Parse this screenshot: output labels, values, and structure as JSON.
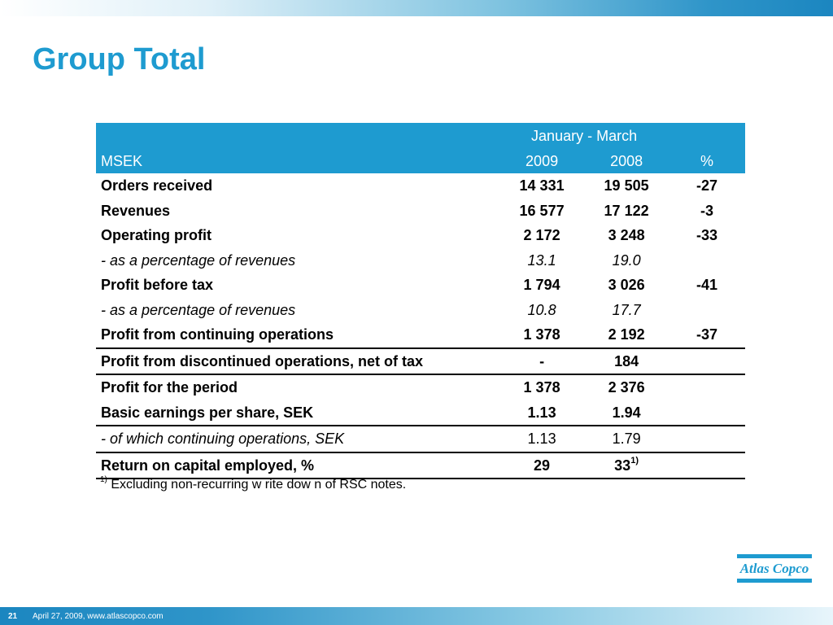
{
  "slide": {
    "title": "Group Total",
    "page_number": "21",
    "footer": "April 27, 2009, www.atlascopco.com",
    "logo_text": "Atlas Copco",
    "accent_color": "#1e9bd0"
  },
  "table": {
    "header": {
      "period": "January - March",
      "unit": "MSEK",
      "col_2009": "2009",
      "col_2008": "2008",
      "col_pct": "%"
    },
    "rows": [
      {
        "label": "Orders received",
        "v2009": "14 331",
        "v2008": "19 505",
        "pct": "-27"
      },
      {
        "label": "Revenues",
        "v2009": "16 577",
        "v2008": "17 122",
        "pct": "-3"
      },
      {
        "label": "Operating profit",
        "v2009": "2 172",
        "v2008": "3 248",
        "pct": "-33"
      },
      {
        "label": "-  as a percentage of revenues",
        "v2009": "13.1",
        "v2008": "19.0",
        "pct": ""
      },
      {
        "label": "Profit before tax",
        "v2009": "1 794",
        "v2008": "3 026",
        "pct": "-41"
      },
      {
        "label": "-  as a percentage of revenues",
        "v2009": "10.8",
        "v2008": "17.7",
        "pct": ""
      },
      {
        "label": "Profit from continuing operations",
        "v2009": "1 378",
        "v2008": "2 192",
        "pct": "-37"
      },
      {
        "label": "Profit from discontinued operations, net of tax",
        "v2009": "-",
        "v2008": "184",
        "pct": ""
      },
      {
        "label": "Profit for the period",
        "v2009": "1 378",
        "v2008": "2 376",
        "pct": ""
      },
      {
        "label": "Basic earnings per share, SEK",
        "v2009": "1.13",
        "v2008": "1.94",
        "pct": ""
      },
      {
        "label": "- of which continuing operations, SEK",
        "v2009": "1.13",
        "v2008": "1.79",
        "pct": ""
      },
      {
        "label": "Return on capital employed, %",
        "v2009": "29",
        "v2008": "33",
        "v2008_sup": "1)",
        "pct": ""
      }
    ]
  },
  "footnote": {
    "marker": "1)",
    "text": "Excluding non-recurring w rite dow n of RSC notes."
  }
}
